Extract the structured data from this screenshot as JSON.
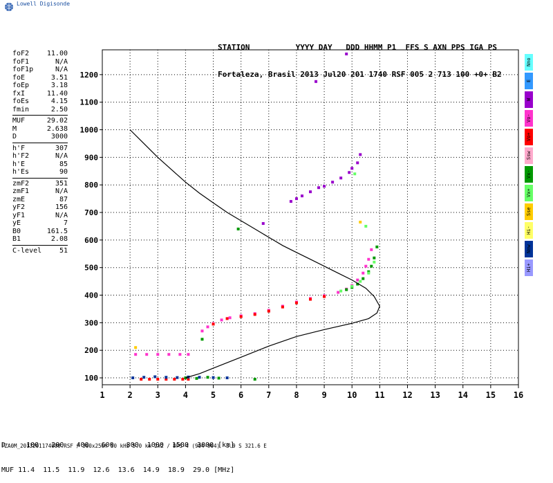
{
  "app": {
    "logo_text": "Lowell Digisonde"
  },
  "header": {
    "line1": "STATION          YYYY DAY   DDD HHMM P1  FFS S AXN PPS IGA PS",
    "line2": "Fortaleza, Brasil 2013 Jul20 201 1740 RSF 005 2 713 100 +0+ B2"
  },
  "params": {
    "group1": [
      {
        "label": "foF2",
        "value": "11.00"
      },
      {
        "label": "foF1",
        "value": "N/A"
      },
      {
        "label": "foF1p",
        "value": "N/A"
      },
      {
        "label": "foE",
        "value": "3.51"
      },
      {
        "label": "foEp",
        "value": "3.18"
      },
      {
        "label": "fxI",
        "value": "11.40"
      },
      {
        "label": "foEs",
        "value": "4.15"
      },
      {
        "label": "fmin",
        "value": "2.50"
      }
    ],
    "group2": [
      {
        "label": "MUF",
        "value": "29.02"
      },
      {
        "label": "M",
        "value": "2.638"
      },
      {
        "label": "D",
        "value": "3000"
      }
    ],
    "group3": [
      {
        "label": "h'F",
        "value": "307"
      },
      {
        "label": "h'F2",
        "value": "N/A"
      },
      {
        "label": "h'E",
        "value": "85"
      },
      {
        "label": "h'Es",
        "value": "90"
      }
    ],
    "group4": [
      {
        "label": "zmF2",
        "value": "351"
      },
      {
        "label": "zmF1",
        "value": "N/A"
      },
      {
        "label": "zmE",
        "value": "87"
      },
      {
        "label": "yF2",
        "value": "156"
      },
      {
        "label": "yF1",
        "value": "N/A"
      },
      {
        "label": "yE",
        "value": "7"
      },
      {
        "label": "B0",
        "value": "161.5"
      },
      {
        "label": "B1",
        "value": "2.08"
      }
    ],
    "group5": [
      {
        "label": "C-level",
        "value": "51"
      }
    ]
  },
  "legend": [
    {
      "label": "Nno",
      "color": "#66ffff"
    },
    {
      "label": "E",
      "color": "#3399ff"
    },
    {
      "label": "W",
      "color": "#9900cc"
    },
    {
      "label": "Vo-",
      "color": "#ff33cc"
    },
    {
      "label": "Vo+",
      "color": "#ff0000"
    },
    {
      "label": "Ssw",
      "color": "#ffaacc"
    },
    {
      "label": "Vx-",
      "color": "#009900"
    },
    {
      "label": "Vx+",
      "color": "#66ff66"
    },
    {
      "label": "Sse",
      "color": "#ffcc00"
    },
    {
      "label": "Hi-",
      "color": "#ffff66"
    },
    {
      "label": "Nnw",
      "color": "#003399"
    },
    {
      "label": "Hi+",
      "color": "#9999ff"
    }
  ],
  "muf_table": {
    "d_label": "D",
    "d_values": [
      "100",
      "200",
      "400",
      "600",
      "800",
      "1000",
      "1500",
      "3000"
    ],
    "d_unit": "[km]",
    "muf_label": "MUF",
    "muf_values": [
      "11.4",
      "11.5",
      "11.9",
      "12.6",
      "13.6",
      "14.9",
      "18.9",
      "29.0"
    ],
    "muf_unit": "[MHz]"
  },
  "footer": "FZA0M_2013201174000.RSF / 300x256h 50 kHz 5.0 km 2x2 / DPS-4 (904-904)  3.9 S 321.6 E",
  "chart_data": {
    "type": "scatter",
    "xlabel": "",
    "ylabel": "",
    "xlim": [
      1,
      16
    ],
    "ylim": [
      75,
      1290
    ],
    "xticks": [
      1,
      2,
      3,
      4,
      5,
      6,
      7,
      8,
      9,
      10,
      11,
      12,
      13,
      14,
      15,
      16
    ],
    "yticks": [
      100,
      200,
      300,
      400,
      500,
      600,
      700,
      800,
      900,
      1000,
      1100,
      1200
    ],
    "grid": true,
    "profile": {
      "x": [
        2.0,
        2.5,
        3.0,
        3.5,
        4.0,
        4.5,
        5.0,
        5.5,
        6.0,
        6.5,
        7.0,
        7.5,
        8.0,
        8.5,
        9.0,
        9.5,
        10.0,
        10.5,
        10.8,
        11.0,
        10.9,
        10.6,
        10.0,
        9.0,
        8.0,
        7.0,
        6.0,
        5.0,
        4.5,
        4.0
      ],
      "y": [
        1000,
        950,
        900,
        855,
        810,
        770,
        735,
        700,
        670,
        640,
        610,
        580,
        555,
        530,
        505,
        480,
        455,
        425,
        395,
        360,
        335,
        315,
        298,
        275,
        250,
        215,
        175,
        135,
        115,
        100
      ]
    },
    "traces": [
      {
        "name": "Vo-",
        "color": "#ff33cc",
        "x": [
          4.6,
          4.8,
          5.0,
          5.3,
          5.6,
          6.0,
          6.5,
          7.0,
          7.5,
          8.0,
          8.5,
          9.0,
          9.5,
          9.8,
          10.0,
          10.2,
          10.4,
          10.5,
          10.6,
          10.7
        ],
        "y": [
          270,
          285,
          297,
          310,
          318,
          325,
          333,
          345,
          360,
          375,
          388,
          398,
          410,
          422,
          435,
          455,
          480,
          505,
          530,
          565
        ]
      },
      {
        "name": "Vo+",
        "color": "#ff0000",
        "x": [
          5.0,
          5.5,
          6.0,
          6.5,
          7.0,
          7.5,
          8.0,
          8.5,
          9.0
        ],
        "y": [
          295,
          315,
          322,
          330,
          342,
          357,
          372,
          385,
          395
        ]
      },
      {
        "name": "Vx-",
        "color": "#009900",
        "x": [
          9.8,
          10.0,
          10.2,
          10.4,
          10.6,
          10.7,
          10.8,
          10.9
        ],
        "y": [
          420,
          428,
          440,
          460,
          485,
          505,
          535,
          575
        ]
      },
      {
        "name": "Vx+",
        "color": "#66ff66",
        "x": [
          9.6,
          10.0,
          10.3,
          10.6,
          10.8
        ],
        "y": [
          415,
          432,
          450,
          480,
          520
        ]
      },
      {
        "name": "W",
        "color": "#9900cc",
        "x": [
          7.8,
          8.0,
          8.2,
          8.5,
          8.8,
          9.0,
          9.3,
          9.6,
          9.9,
          10.0,
          10.2,
          10.3
        ],
        "y": [
          740,
          750,
          760,
          775,
          790,
          795,
          810,
          825,
          845,
          860,
          880,
          910
        ]
      },
      {
        "name": "Vo-",
        "color": "#ff33cc",
        "x": [
          2.2,
          2.6,
          3.0,
          3.4,
          3.8,
          4.1
        ],
        "y": [
          185,
          185,
          185,
          185,
          185,
          185
        ]
      },
      {
        "name": "Vo+",
        "color": "#ff0000",
        "x": [
          2.4,
          2.7,
          3.0,
          3.3,
          3.6,
          3.9,
          4.1
        ],
        "y": [
          95,
          95,
          95,
          95,
          95,
          95,
          95
        ]
      },
      {
        "name": "Nnw",
        "color": "#003399",
        "x": [
          2.1,
          2.5,
          2.9,
          3.3,
          3.7,
          4.1,
          4.5,
          5.0,
          5.5
        ],
        "y": [
          100,
          102,
          104,
          102,
          101,
          103,
          102,
          101,
          100
        ]
      },
      {
        "name": "Vx-",
        "color": "#009900",
        "x": [
          4.0,
          4.4,
          4.8,
          5.2
        ],
        "y": [
          100,
          98,
          102,
          99
        ]
      },
      {
        "name": "W",
        "color": "#9900cc",
        "x": [
          8.7,
          9.8,
          6.8
        ],
        "y": [
          1175,
          1275,
          660
        ]
      },
      {
        "name": "Vx+",
        "color": "#66ff66",
        "x": [
          10.1,
          10.5
        ],
        "y": [
          840,
          650
        ]
      },
      {
        "name": "Sse",
        "color": "#ffcc00",
        "x": [
          10.3,
          2.2
        ],
        "y": [
          665,
          210
        ]
      },
      {
        "name": "Vx-",
        "color": "#009900",
        "x": [
          4.6,
          5.9,
          6.5
        ],
        "y": [
          240,
          640,
          95
        ]
      }
    ]
  }
}
